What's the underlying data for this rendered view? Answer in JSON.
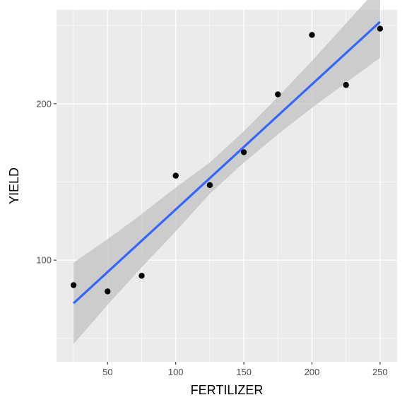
{
  "chart_data": {
    "type": "scatter",
    "xlabel": "FERTILIZER",
    "ylabel": "YIELD",
    "xlim": [
      12.5,
      262.5
    ],
    "ylim": [
      35,
      260
    ],
    "x_ticks": [
      50,
      100,
      150,
      200,
      250
    ],
    "y_ticks": [
      100,
      200
    ],
    "grid": true,
    "series": [
      {
        "x": [
          25,
          50,
          75,
          100,
          125,
          150,
          175,
          200,
          225,
          250
        ],
        "y": [
          84,
          80,
          90,
          154,
          148,
          169,
          206,
          244,
          212,
          248
        ]
      }
    ],
    "trendline": {
      "method": "linear",
      "x": [
        25,
        50,
        75,
        100,
        125,
        150,
        175,
        200,
        225,
        250
      ],
      "y": [
        72.4,
        92.4,
        112.4,
        132.4,
        152.4,
        172.4,
        192.4,
        212.4,
        232.4,
        252.4
      ],
      "ci_lower": [
        46.4,
        71.4,
        95.4,
        118.4,
        142.4,
        162.4,
        180.4,
        197.4,
        213.4,
        229.4
      ],
      "ci_upper": [
        98.4,
        113.4,
        129.4,
        146.4,
        162.4,
        182.4,
        204.4,
        227.4,
        251.4,
        275.4
      ]
    },
    "colors": {
      "panel": "#ebebeb",
      "grid": "#ffffff",
      "points": "#000000",
      "line": "#3366ff",
      "ribbon": "#bfbfbf"
    }
  }
}
